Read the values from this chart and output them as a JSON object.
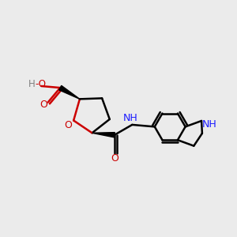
{
  "background_color": "#ebebeb",
  "bond_color": "#000000",
  "oxygen_color": "#cc0000",
  "nitrogen_color": "#1a1aff",
  "line_width": 1.8,
  "figsize": [
    3.0,
    3.0
  ],
  "dpi": 100,
  "xlim": [
    -2.6,
    2.6
  ],
  "ylim": [
    -1.8,
    1.8
  ]
}
